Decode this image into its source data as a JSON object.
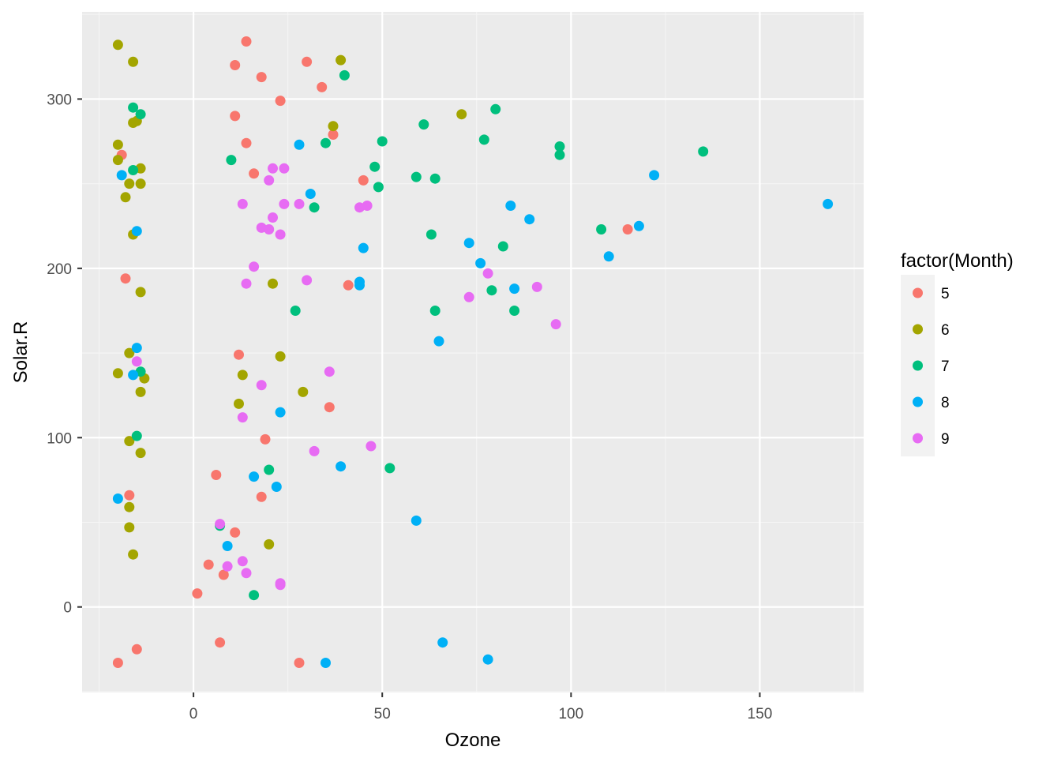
{
  "chart_data": {
    "type": "scatter",
    "xlabel": "Ozone",
    "ylabel": "Solar.R",
    "xlim": [
      -29.5,
      177.5
    ],
    "ylim": [
      -50.5,
      351.5
    ],
    "x_ticks": [
      0,
      50,
      100,
      150
    ],
    "y_ticks": [
      0,
      100,
      200,
      300
    ],
    "grid": true,
    "legend": {
      "title": "factor(Month)",
      "placement": "right",
      "entries": [
        {
          "label": "5",
          "color": "#F8766D"
        },
        {
          "label": "6",
          "color": "#A3A500"
        },
        {
          "label": "7",
          "color": "#00BF7D"
        },
        {
          "label": "8",
          "color": "#00B0F6"
        },
        {
          "label": "9",
          "color": "#E76BF3"
        }
      ]
    },
    "series": [
      {
        "name": "5",
        "color": "#F8766D",
        "points": [
          [
            -19,
            267
          ],
          [
            -18,
            194
          ],
          [
            -17,
            66
          ],
          [
            -20,
            -33
          ],
          [
            -15,
            -25
          ],
          [
            1,
            8
          ],
          [
            4,
            25
          ],
          [
            6,
            78
          ],
          [
            7,
            -21
          ],
          [
            8,
            19
          ],
          [
            11,
            320
          ],
          [
            11,
            290
          ],
          [
            11,
            44
          ],
          [
            12,
            149
          ],
          [
            14,
            334
          ],
          [
            14,
            274
          ],
          [
            16,
            256
          ],
          [
            18,
            313
          ],
          [
            18,
            65
          ],
          [
            19,
            99
          ],
          [
            23,
            299
          ],
          [
            28,
            -33
          ],
          [
            30,
            322
          ],
          [
            34,
            307
          ],
          [
            36,
            118
          ],
          [
            37,
            279
          ],
          [
            41,
            190
          ],
          [
            45,
            252
          ],
          [
            115,
            223
          ]
        ]
      },
      {
        "name": "6",
        "color": "#A3A500",
        "points": [
          [
            -20,
            332
          ],
          [
            -20,
            273
          ],
          [
            -20,
            264
          ],
          [
            -20,
            138
          ],
          [
            -18,
            242
          ],
          [
            -17,
            250
          ],
          [
            -17,
            150
          ],
          [
            -17,
            98
          ],
          [
            -17,
            59
          ],
          [
            -17,
            47
          ],
          [
            -16,
            322
          ],
          [
            -16,
            286
          ],
          [
            -16,
            220
          ],
          [
            -16,
            31
          ],
          [
            -15,
            287
          ],
          [
            -14,
            259
          ],
          [
            -14,
            250
          ],
          [
            -14,
            186
          ],
          [
            -14,
            127
          ],
          [
            -14,
            91
          ],
          [
            -13,
            135
          ],
          [
            12,
            120
          ],
          [
            13,
            137
          ],
          [
            20,
            37
          ],
          [
            21,
            191
          ],
          [
            23,
            148
          ],
          [
            29,
            127
          ],
          [
            37,
            284
          ],
          [
            39,
            323
          ],
          [
            71,
            291
          ]
        ]
      },
      {
        "name": "7",
        "color": "#00BF7D",
        "points": [
          [
            -16,
            295
          ],
          [
            -16,
            258
          ],
          [
            -14,
            291
          ],
          [
            -14,
            139
          ],
          [
            -15,
            101
          ],
          [
            7,
            48
          ],
          [
            10,
            264
          ],
          [
            16,
            7
          ],
          [
            20,
            81
          ],
          [
            27,
            175
          ],
          [
            32,
            236
          ],
          [
            35,
            274
          ],
          [
            40,
            314
          ],
          [
            48,
            260
          ],
          [
            49,
            248
          ],
          [
            50,
            275
          ],
          [
            52,
            82
          ],
          [
            59,
            254
          ],
          [
            61,
            285
          ],
          [
            63,
            220
          ],
          [
            64,
            253
          ],
          [
            64,
            175
          ],
          [
            77,
            276
          ],
          [
            79,
            187
          ],
          [
            80,
            294
          ],
          [
            82,
            213
          ],
          [
            85,
            175
          ],
          [
            97,
            272
          ],
          [
            97,
            267
          ],
          [
            108,
            223
          ],
          [
            135,
            269
          ]
        ]
      },
      {
        "name": "8",
        "color": "#00B0F6",
        "points": [
          [
            -20,
            64
          ],
          [
            -19,
            255
          ],
          [
            -15,
            222
          ],
          [
            -15,
            153
          ],
          [
            -16,
            137
          ],
          [
            9,
            36
          ],
          [
            16,
            77
          ],
          [
            22,
            71
          ],
          [
            23,
            115
          ],
          [
            28,
            273
          ],
          [
            31,
            244
          ],
          [
            35,
            -33
          ],
          [
            39,
            83
          ],
          [
            44,
            192
          ],
          [
            44,
            190
          ],
          [
            45,
            212
          ],
          [
            59,
            51
          ],
          [
            65,
            157
          ],
          [
            66,
            -21
          ],
          [
            73,
            215
          ],
          [
            76,
            203
          ],
          [
            78,
            -31
          ],
          [
            84,
            237
          ],
          [
            85,
            188
          ],
          [
            89,
            229
          ],
          [
            110,
            207
          ],
          [
            118,
            225
          ],
          [
            122,
            255
          ],
          [
            168,
            238
          ]
        ]
      },
      {
        "name": "9",
        "color": "#E76BF3",
        "points": [
          [
            -15,
            145
          ],
          [
            7,
            49
          ],
          [
            9,
            24
          ],
          [
            13,
            238
          ],
          [
            13,
            112
          ],
          [
            13,
            27
          ],
          [
            14,
            191
          ],
          [
            14,
            20
          ],
          [
            16,
            201
          ],
          [
            18,
            224
          ],
          [
            18,
            131
          ],
          [
            20,
            252
          ],
          [
            20,
            223
          ],
          [
            21,
            259
          ],
          [
            21,
            230
          ],
          [
            23,
            220
          ],
          [
            23,
            14
          ],
          [
            23,
            13
          ],
          [
            24,
            259
          ],
          [
            24,
            238
          ],
          [
            28,
            238
          ],
          [
            30,
            193
          ],
          [
            32,
            92
          ],
          [
            36,
            139
          ],
          [
            44,
            236
          ],
          [
            46,
            237
          ],
          [
            47,
            95
          ],
          [
            73,
            183
          ],
          [
            78,
            197
          ],
          [
            91,
            189
          ],
          [
            96,
            167
          ]
        ]
      }
    ]
  }
}
